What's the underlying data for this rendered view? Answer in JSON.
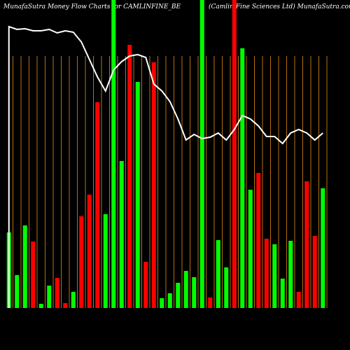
{
  "chart_data": {
    "type": "bar",
    "title": "MunafaSutra  Money Flow  Charts for CAMLINFINE_BE",
    "subtitle": "(Camlin Fine Sciences Ltd) MunafaSutra.com",
    "categories": [
      null,
      null,
      null,
      null,
      null,
      null,
      null,
      null,
      null,
      null,
      null,
      null,
      null,
      null,
      null,
      null,
      null,
      null,
      null,
      null,
      null,
      null,
      null,
      null,
      null,
      null,
      null,
      null,
      null,
      null,
      null,
      null,
      null,
      null,
      null,
      null,
      null,
      null,
      null,
      null
    ],
    "ylim": [
      0,
      440
    ],
    "bars": {
      "values": [
        108,
        47,
        118,
        95,
        6,
        32,
        43,
        7,
        23,
        131,
        162,
        294,
        134,
        440,
        210,
        376,
        323,
        66,
        351,
        14,
        21,
        36,
        53,
        44,
        440,
        15,
        97,
        58,
        440,
        371,
        169,
        193,
        99,
        91,
        42,
        96,
        23,
        181,
        103,
        171
      ],
      "colors": [
        "#00ff00",
        "#00ff00",
        "#00ff00",
        "#ff0000",
        "#00ff00",
        "#00ff00",
        "#ff0000",
        "#ff0000",
        "#00ff00",
        "#ff0000",
        "#ff0000",
        "#ff0000",
        "#00ff00",
        "#00ff00",
        "#00ff00",
        "#ff0000",
        "#00ff00",
        "#ff0000",
        "#ff0000",
        "#00ff00",
        "#00ff00",
        "#00ff00",
        "#00ff00",
        "#00ff00",
        "#00ff00",
        "#ff0000",
        "#00ff00",
        "#00ff00",
        "#ff0000",
        "#00ff00",
        "#00ff00",
        "#ff0000",
        "#ff0000",
        "#00ff00",
        "#00ff00",
        "#00ff00",
        "#ff0000",
        "#ff0000",
        "#ff0000",
        "#00ff00"
      ]
    },
    "line": {
      "color": "#ffffff",
      "values": [
        402,
        398,
        399,
        396,
        396,
        398,
        393,
        396,
        394,
        380,
        355,
        330,
        310,
        340,
        352,
        360,
        362,
        358,
        320,
        310,
        295,
        270,
        240,
        248,
        242,
        244,
        250,
        240,
        255,
        275,
        270,
        260,
        245,
        245,
        235,
        250,
        255,
        250,
        240,
        250
      ]
    }
  }
}
